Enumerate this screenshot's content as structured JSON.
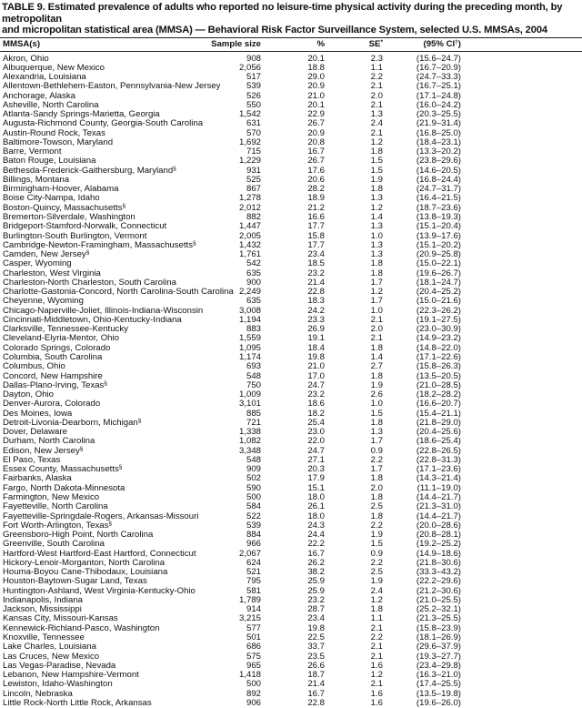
{
  "title": {
    "line1": "TABLE 9. Estimated prevalence of adults who reported no leisure-time physical activity during the preceding month, by metropolitan",
    "line2": "and micropolitan statistical area (MMSA) — Behavioral Risk Factor Surveillance System, selected U.S. MMSAs, 2004"
  },
  "columns": {
    "mmsa": "MMSA(s)",
    "sample": "Sample size",
    "pct": "%",
    "se": "SE",
    "se_note": "*",
    "ci": "(95% CI",
    "ci_note": "†",
    "ci_close": ")"
  },
  "rows": [
    [
      "Akron, Ohio",
      "",
      "908",
      "20.1",
      "2.3",
      "(15.6–24.7)"
    ],
    [
      "Albuquerque, New Mexico",
      "",
      "2,056",
      "18.8",
      "1.1",
      "(16.7–20.9)"
    ],
    [
      "Alexandria, Louisiana",
      "",
      "517",
      "29.0",
      "2.2",
      "(24.7–33.3)"
    ],
    [
      "Allentown-Bethlehem-Easton, Pennsylvania-New Jersey",
      "",
      "539",
      "20.9",
      "2.1",
      "(16.7–25.1)"
    ],
    [
      "Anchorage, Alaska",
      "",
      "526",
      "21.0",
      "2.0",
      "(17.1–24.8)"
    ],
    [
      "Asheville, North Carolina",
      "",
      "550",
      "20.1",
      "2.1",
      "(16.0–24.2)"
    ],
    [
      "Atlanta-Sandy Springs-Marietta, Georgia",
      "",
      "1,542",
      "22.9",
      "1.3",
      "(20.3–25.5)"
    ],
    [
      "Augusta-Richmond County, Georgia-South Carolina",
      "",
      "631",
      "26.7",
      "2.4",
      "(21.9–31.4)"
    ],
    [
      "Austin-Round Rock, Texas",
      "",
      "570",
      "20.9",
      "2.1",
      "(16.8–25.0)"
    ],
    [
      "Baltimore-Towson, Maryland",
      "",
      "1,692",
      "20.8",
      "1.2",
      "(18.4–23.1)"
    ],
    [
      "Barre, Vermont",
      "",
      "715",
      "16.7",
      "1.8",
      "(13.3–20.2)"
    ],
    [
      "Baton Rouge, Louisiana",
      "",
      "1,229",
      "26.7",
      "1.5",
      "(23.8–29.6)"
    ],
    [
      "Bethesda-Frederick-Gaithersburg, Maryland",
      "§",
      "931",
      "17.6",
      "1.5",
      "(14.6–20.5)"
    ],
    [
      "Billings, Montana",
      "",
      "525",
      "20.6",
      "1.9",
      "(16.8–24.4)"
    ],
    [
      "Birmingham-Hoover, Alabama",
      "",
      "867",
      "28.2",
      "1.8",
      "(24.7–31.7)"
    ],
    [
      "Boise City-Nampa, Idaho",
      "",
      "1,278",
      "18.9",
      "1.3",
      "(16.4–21.5)"
    ],
    [
      "Boston-Quincy, Massachusetts",
      "§",
      "2,012",
      "21.2",
      "1.2",
      "(18.7–23.6)"
    ],
    [
      "Bremerton-Silverdale, Washington",
      "",
      "882",
      "16.6",
      "1.4",
      "(13.8–19.3)"
    ],
    [
      "Bridgeport-Stamford-Norwalk, Connecticut",
      "",
      "1,447",
      "17.7",
      "1.3",
      "(15.1–20.4)"
    ],
    [
      "Burlington-South Burlington, Vermont",
      "",
      "2,005",
      "15.8",
      "1.0",
      "(13.9–17.6)"
    ],
    [
      "Cambridge-Newton-Framingham, Massachusetts",
      "§",
      "1,432",
      "17.7",
      "1.3",
      "(15.1–20.2)"
    ],
    [
      "Camden, New Jersey",
      "§",
      "1,761",
      "23.4",
      "1.3",
      "(20.9–25.8)"
    ],
    [
      "Casper, Wyoming",
      "",
      "542",
      "18.5",
      "1.8",
      "(15.0–22.1)"
    ],
    [
      "Charleston, West Virginia",
      "",
      "635",
      "23.2",
      "1.8",
      "(19.6–26.7)"
    ],
    [
      "Charleston-North Charleston, South Carolina",
      "",
      "900",
      "21.4",
      "1.7",
      "(18.1–24.7)"
    ],
    [
      "Charlotte-Gastonia-Concord, North Carolina-South Carolina",
      "",
      "2,249",
      "22.8",
      "1.2",
      "(20.4–25.2)"
    ],
    [
      "Cheyenne, Wyoming",
      "",
      "635",
      "18.3",
      "1.7",
      "(15.0–21.6)"
    ],
    [
      "Chicago-Naperville-Joliet, Illinois-Indiana-Wisconsin",
      "",
      "3,008",
      "24.2",
      "1.0",
      "(22.3–26.2)"
    ],
    [
      "Cincinnati-Middletown, Ohio-Kentucky-Indiana",
      "",
      "1,194",
      "23.3",
      "2.1",
      "(19.1–27.5)"
    ],
    [
      "Clarksville, Tennessee-Kentucky",
      "",
      "883",
      "26.9",
      "2.0",
      "(23.0–30.9)"
    ],
    [
      "Cleveland-Elyria-Mentor, Ohio",
      "",
      "1,559",
      "19.1",
      "2.1",
      "(14.9–23.2)"
    ],
    [
      "Colorado Springs, Colorado",
      "",
      "1,095",
      "18.4",
      "1.8",
      "(14.8–22.0)"
    ],
    [
      "Columbia, South Carolina",
      "",
      "1,174",
      "19.8",
      "1.4",
      "(17.1–22.6)"
    ],
    [
      "Columbus, Ohio",
      "",
      "693",
      "21.0",
      "2.7",
      "(15.8–26.3)"
    ],
    [
      "Concord, New Hampshire",
      "",
      "548",
      "17.0",
      "1.8",
      "(13.5–20.5)"
    ],
    [
      "Dallas-Plano-Irving, Texas",
      "§",
      "750",
      "24.7",
      "1.9",
      "(21.0–28.5)"
    ],
    [
      "Dayton, Ohio",
      "",
      "1,009",
      "23.2",
      "2.6",
      "(18.2–28.2)"
    ],
    [
      "Denver-Aurora, Colorado",
      "",
      "3,101",
      "18.6",
      "1.0",
      "(16.6–20.7)"
    ],
    [
      "Des Moines, Iowa",
      "",
      "885",
      "18.2",
      "1.5",
      "(15.4–21.1)"
    ],
    [
      "Detroit-Livonia-Dearborn, Michigan",
      "§",
      "721",
      "25.4",
      "1.8",
      "(21.8–29.0)"
    ],
    [
      "Dover, Delaware",
      "",
      "1,338",
      "23.0",
      "1.3",
      "(20.4–25.6)"
    ],
    [
      "Durham, North Carolina",
      "",
      "1,082",
      "22.0",
      "1.7",
      "(18.6–25.4)"
    ],
    [
      "Edison, New Jersey",
      "§",
      "3,348",
      "24.7",
      "0.9",
      "(22.8–26.5)"
    ],
    [
      "El Paso, Texas",
      "",
      "548",
      "27.1",
      "2.2",
      "(22.8–31.3)"
    ],
    [
      "Essex County, Massachusetts",
      "§",
      "909",
      "20.3",
      "1.7",
      "(17.1–23.6)"
    ],
    [
      "Fairbanks, Alaska",
      "",
      "502",
      "17.9",
      "1.8",
      "(14.3–21.4)"
    ],
    [
      "Fargo, North Dakota-Minnesota",
      "",
      "590",
      "15.1",
      "2.0",
      "(11.1–19.0)"
    ],
    [
      "Farmington, New Mexico",
      "",
      "500",
      "18.0",
      "1.8",
      "(14.4–21.7)"
    ],
    [
      "Fayetteville, North Carolina",
      "",
      "584",
      "26.1",
      "2.5",
      "(21.3–31.0)"
    ],
    [
      "Fayetteville-Springdale-Rogers, Arkansas-Missouri",
      "",
      "522",
      "18.0",
      "1.8",
      "(14.4–21.7)"
    ],
    [
      "Fort Worth-Arlington, Texas",
      "§",
      "539",
      "24.3",
      "2.2",
      "(20.0–28.6)"
    ],
    [
      "Greensboro-High Point, North Carolina",
      "",
      "884",
      "24.4",
      "1.9",
      "(20.8–28.1)"
    ],
    [
      "Greenville, South Carolina",
      "",
      "966",
      "22.2",
      "1.5",
      "(19.2–25.2)"
    ],
    [
      "Hartford-West Hartford-East Hartford, Connecticut",
      "",
      "2,067",
      "16.7",
      "0.9",
      "(14.9–18.6)"
    ],
    [
      "Hickory-Lenoir-Morganton, North Carolina",
      "",
      "624",
      "26.2",
      "2.2",
      "(21.8–30.6)"
    ],
    [
      "Houma-Boyou Cane-Thibodaux, Louisiana",
      "",
      "521",
      "38.2",
      "2.5",
      "(33.3–43.2)"
    ],
    [
      "Houston-Baytown-Sugar Land, Texas",
      "",
      "795",
      "25.9",
      "1.9",
      "(22.2–29.6)"
    ],
    [
      "Huntington-Ashland, West Virginia-Kentucky-Ohio",
      "",
      "581",
      "25.9",
      "2.4",
      "(21.2–30.6)"
    ],
    [
      "Indianapolis, Indiana",
      "",
      "1,789",
      "23.2",
      "1.2",
      "(21.0–25.5)"
    ],
    [
      "Jackson, Mississippi",
      "",
      "914",
      "28.7",
      "1.8",
      "(25.2–32.1)"
    ],
    [
      "Kansas City, Missouri-Kansas",
      "",
      "3,215",
      "23.4",
      "1.1",
      "(21.3–25.5)"
    ],
    [
      "Kennewick-Richland-Pasco, Washington",
      "",
      "577",
      "19.8",
      "2.1",
      "(15.8–23.9)"
    ],
    [
      "Knoxville, Tennessee",
      "",
      "501",
      "22.5",
      "2.2",
      "(18.1–26.9)"
    ],
    [
      "Lake Charles, Louisiana",
      "",
      "686",
      "33.7",
      "2.1",
      "(29.6–37.9)"
    ],
    [
      "Las Cruces, New Mexico",
      "",
      "575",
      "23.5",
      "2.1",
      "(19.3–27.7)"
    ],
    [
      "Las Vegas-Paradise, Nevada",
      "",
      "965",
      "26.6",
      "1.6",
      "(23.4–29.8)"
    ],
    [
      "Lebanon, New Hampshire-Vermont",
      "",
      "1,418",
      "18.7",
      "1.2",
      "(16.3–21.0)"
    ],
    [
      "Lewiston, Idaho-Washington",
      "",
      "500",
      "21.4",
      "2.1",
      "(17.4–25.5)"
    ],
    [
      "Lincoln, Nebraska",
      "",
      "892",
      "16.7",
      "1.6",
      "(13.5–19.8)"
    ],
    [
      "Little Rock-North Little Rock, Arkansas",
      "",
      "906",
      "22.8",
      "1.6",
      "(19.6–26.0)"
    ]
  ]
}
